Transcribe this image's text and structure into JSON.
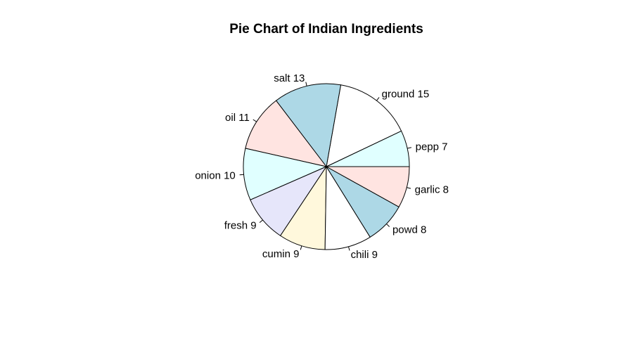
{
  "chart_data": {
    "type": "pie",
    "title": "Pie Chart of Indian Ingredients",
    "slices": [
      {
        "label": "pepp 7",
        "name": "pepp",
        "value": 7,
        "color": "#E0FFFF"
      },
      {
        "label": "ground 15",
        "name": "ground",
        "value": 15,
        "color": "#FFFFFF"
      },
      {
        "label": "salt 13",
        "name": "salt",
        "value": 13,
        "color": "#ADD8E6"
      },
      {
        "label": "oil 11",
        "name": "oil",
        "value": 11,
        "color": "#FFE4E1"
      },
      {
        "label": "onion 10",
        "name": "onion",
        "value": 10,
        "color": "#E0FFFF"
      },
      {
        "label": "fresh 9",
        "name": "fresh",
        "value": 9,
        "color": "#E6E6FA"
      },
      {
        "label": "cumin 9",
        "name": "cumin",
        "value": 9,
        "color": "#FFF8DC"
      },
      {
        "label": "chili 9",
        "name": "chili",
        "value": 9,
        "color": "#FFFFFF"
      },
      {
        "label": "powd 8",
        "name": "powd",
        "value": 8,
        "color": "#ADD8E6"
      },
      {
        "label": "garlic 8",
        "name": "garlic",
        "value": 8,
        "color": "#FFE4E1"
      }
    ],
    "start_angle": "3 o'clock",
    "direction": "counter-clockwise",
    "legend": "none"
  }
}
